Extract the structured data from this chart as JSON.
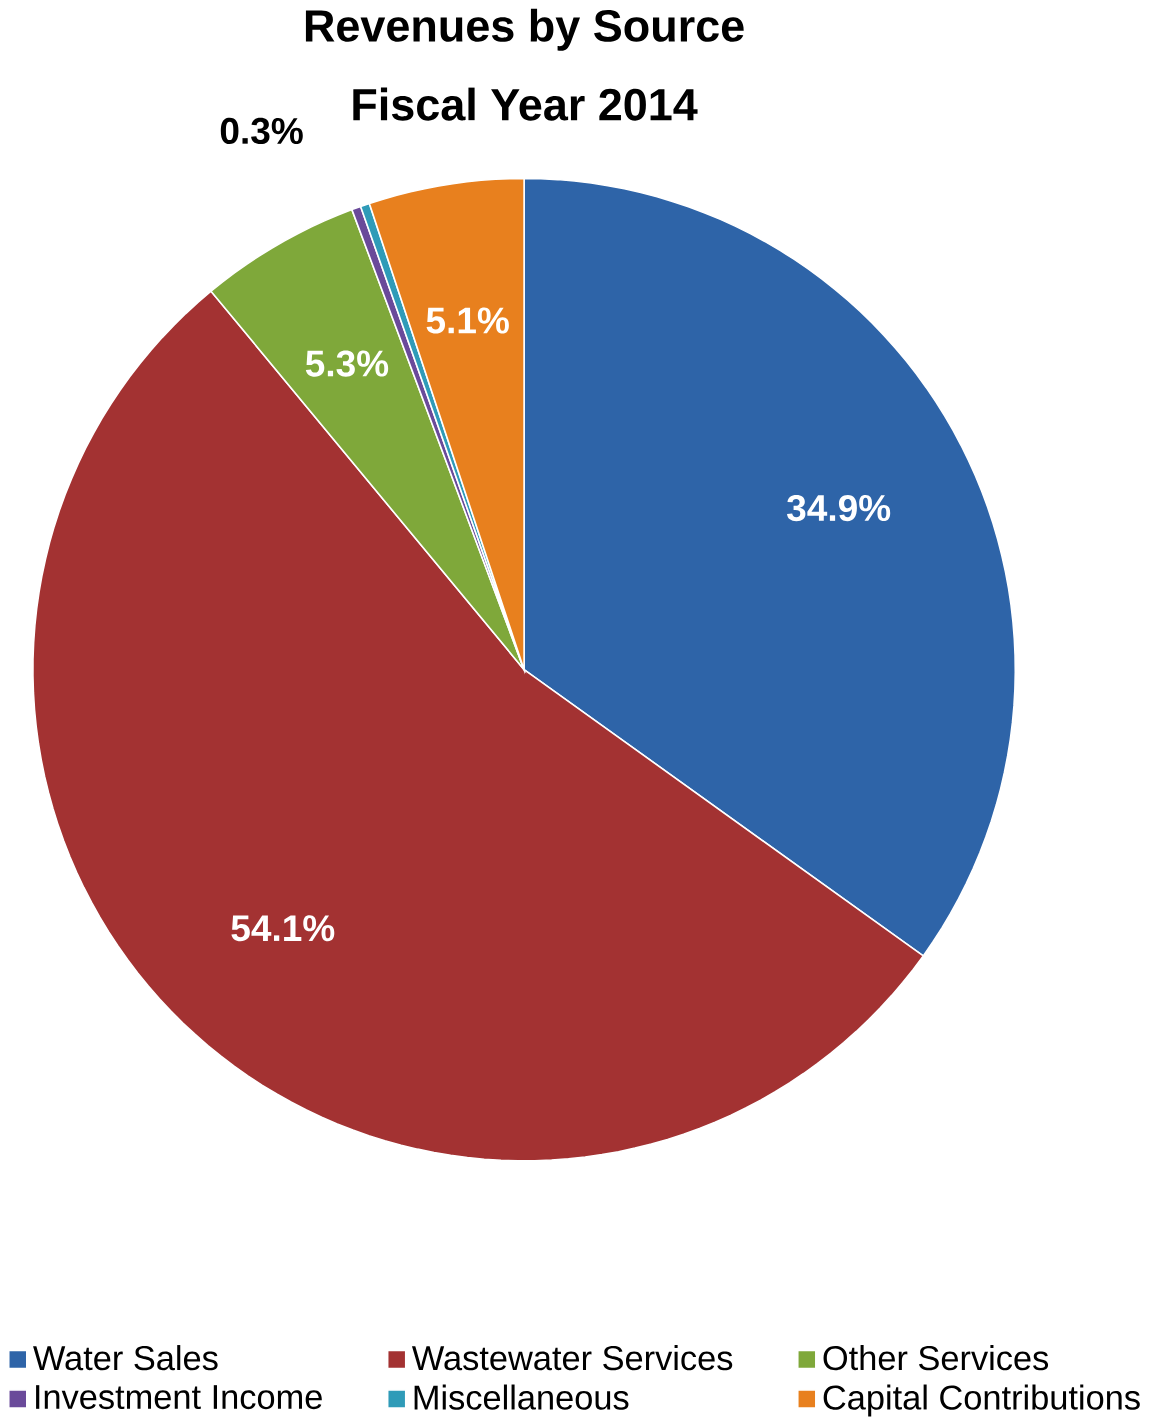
{
  "chart_data": {
    "type": "pie",
    "title": "Revenues by Source",
    "subtitle": "Fiscal Year 2014",
    "categories": [
      "Water Sales",
      "Wastewater Services",
      "Other Services",
      "Investment Income",
      "Miscellaneous",
      "Capital Contributions"
    ],
    "values": [
      34.9,
      54.1,
      5.3,
      0.3,
      0.3,
      5.1
    ],
    "colors": [
      "#2e64a8",
      "#a33232",
      "#7fa83a",
      "#6a4a9a",
      "#2f9bb8",
      "#e8801e"
    ],
    "value_labels": [
      "34.9%",
      "54.1%",
      "5.3%",
      "0.3%",
      null,
      "5.1%"
    ],
    "legend": "bottom"
  }
}
